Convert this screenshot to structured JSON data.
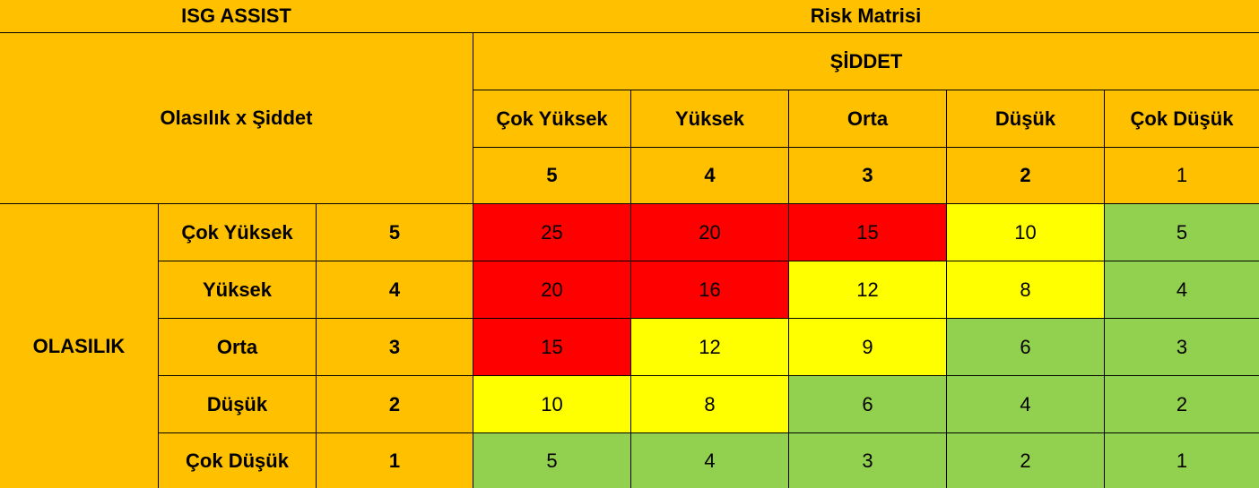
{
  "header": {
    "app_title": "ISG ASSIST",
    "matrix_title": "Risk Matrisi",
    "corner_label": "Olasılık x Şiddet",
    "severity_label": "ŞİDDET",
    "probability_label": "OLASILIK"
  },
  "severity": [
    {
      "label": "Çok Yüksek",
      "value": "5"
    },
    {
      "label": "Yüksek",
      "value": "4"
    },
    {
      "label": "Orta",
      "value": "3"
    },
    {
      "label": "Düşük",
      "value": "2"
    },
    {
      "label": "Çok Düşük",
      "value": "1"
    }
  ],
  "probability": [
    {
      "label": "Çok Yüksek",
      "value": "5"
    },
    {
      "label": "Yüksek",
      "value": "4"
    },
    {
      "label": "Orta",
      "value": "3"
    },
    {
      "label": "Düşük",
      "value": "2"
    },
    {
      "label": "Çok Düşük",
      "value": "1"
    }
  ],
  "colors": {
    "header_bg": "#ffc000",
    "high": "#ff0000",
    "medium": "#ffff00",
    "low": "#92d050"
  },
  "matrix": [
    [
      {
        "v": "25",
        "level": "high"
      },
      {
        "v": "20",
        "level": "high"
      },
      {
        "v": "15",
        "level": "high"
      },
      {
        "v": "10",
        "level": "medium"
      },
      {
        "v": "5",
        "level": "low"
      }
    ],
    [
      {
        "v": "20",
        "level": "high"
      },
      {
        "v": "16",
        "level": "high"
      },
      {
        "v": "12",
        "level": "medium"
      },
      {
        "v": "8",
        "level": "medium"
      },
      {
        "v": "4",
        "level": "low"
      }
    ],
    [
      {
        "v": "15",
        "level": "high"
      },
      {
        "v": "12",
        "level": "medium"
      },
      {
        "v": "9",
        "level": "medium"
      },
      {
        "v": "6",
        "level": "low"
      },
      {
        "v": "3",
        "level": "low"
      }
    ],
    [
      {
        "v": "10",
        "level": "medium"
      },
      {
        "v": "8",
        "level": "medium"
      },
      {
        "v": "6",
        "level": "low"
      },
      {
        "v": "4",
        "level": "low"
      },
      {
        "v": "2",
        "level": "low"
      }
    ],
    [
      {
        "v": "5",
        "level": "low"
      },
      {
        "v": "4",
        "level": "low"
      },
      {
        "v": "3",
        "level": "low"
      },
      {
        "v": "2",
        "level": "low"
      },
      {
        "v": "1",
        "level": "low"
      }
    ]
  ]
}
